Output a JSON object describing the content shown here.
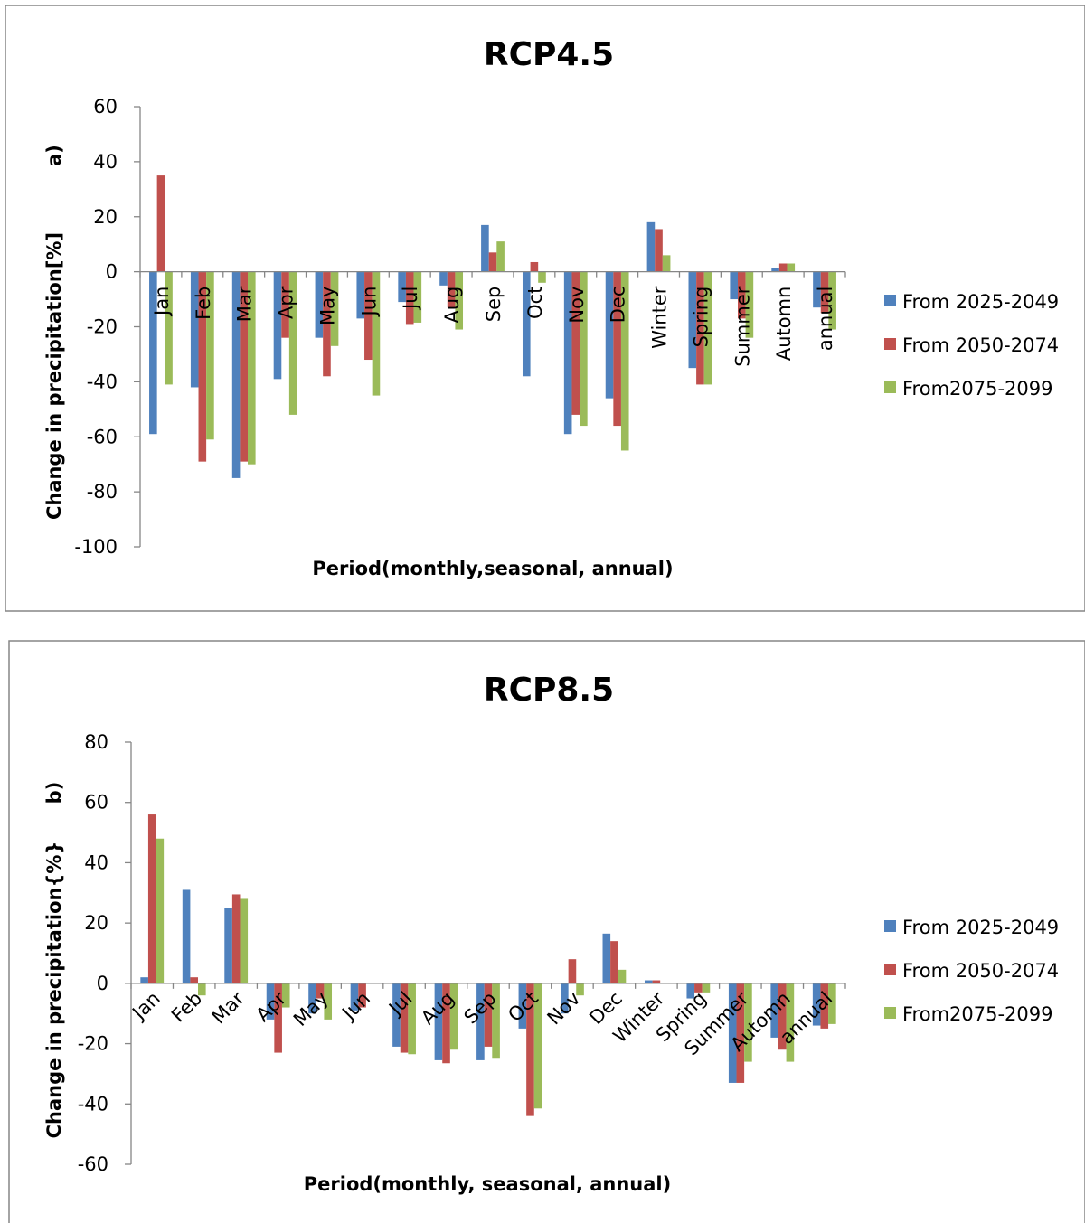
{
  "colors": {
    "series": [
      "#4F81BD",
      "#C0504D",
      "#9BBB59"
    ],
    "axis": "#868686",
    "border": "#868686"
  },
  "chart_data": [
    {
      "type": "bar",
      "title": "RCP4.5",
      "panel_label": "a)",
      "xlabel": "Period(monthly,seasonal, annual)",
      "ylabel": "Change in precipitation[%]",
      "ylim": [
        -100,
        60
      ],
      "yticks": [
        60,
        40,
        20,
        0,
        -20,
        -40,
        -60,
        -80,
        -100
      ],
      "categories": [
        "Jan",
        "Feb",
        "Mar",
        "Apr",
        "May",
        "Jun",
        "Jul",
        "Aug",
        "Sep",
        "Oct",
        "Nov",
        "Dec",
        "Winter",
        "Spring",
        "Summer",
        "Automn",
        "annual"
      ],
      "category_label_rotation": "vertical",
      "legend_position": "right",
      "grid": false,
      "series": [
        {
          "name": "From 2025-2049",
          "values": [
            -59,
            -42,
            -75,
            -39,
            -24,
            -17,
            -11,
            -5,
            17,
            -38,
            -59,
            -46,
            18,
            -35,
            -10,
            1.5,
            -13
          ]
        },
        {
          "name": "From 2050-2074",
          "values": [
            35,
            -69,
            -69,
            -24,
            -38,
            -32,
            -19,
            -13,
            7,
            3.5,
            -52,
            -56,
            15.5,
            -41,
            -17,
            3,
            -15
          ]
        },
        {
          "name": "From2075-2099",
          "values": [
            -41,
            -61,
            -70,
            -52,
            -27,
            -45,
            -18.5,
            -21,
            11,
            -4,
            -56,
            -65,
            6,
            -41,
            -24,
            3,
            -21
          ]
        }
      ]
    },
    {
      "type": "bar",
      "title": "RCP8.5",
      "panel_label": "b)",
      "xlabel": "Period(monthly, seasonal, annual)",
      "ylabel": "Change in precipitation{%}",
      "ylim": [
        -60,
        80
      ],
      "yticks": [
        80,
        60,
        40,
        20,
        0,
        -20,
        -40,
        -60
      ],
      "categories": [
        "Jan",
        "Feb",
        "Mar",
        "Apr",
        "May",
        "Jun",
        "Jul",
        "Aug",
        "Sep",
        "Oct",
        "Nov",
        "Dec",
        "Winter",
        "Spring",
        "Summer",
        "Automn",
        "annual"
      ],
      "category_label_rotation": "diagonal",
      "legend_position": "right",
      "grid": false,
      "series": [
        {
          "name": "From 2025-2049",
          "values": [
            2,
            31,
            25,
            -12,
            -10,
            -9,
            -21,
            -25.5,
            -25.5,
            -15,
            -10,
            16.5,
            1,
            -5,
            -33,
            -18,
            -14
          ]
        },
        {
          "name": "From 2050-2074",
          "values": [
            56,
            2,
            29.5,
            -23,
            -5,
            -8,
            -23,
            -26.5,
            -21,
            -44,
            8,
            14,
            1,
            -3,
            -33,
            -22,
            -15
          ]
        },
        {
          "name": "From2075-2099",
          "values": [
            48,
            -4,
            28,
            -8,
            -12,
            0,
            -23.5,
            -22,
            -25,
            -41.5,
            -4,
            4.5,
            0,
            -3,
            -26,
            -26,
            -13.5
          ]
        }
      ]
    }
  ]
}
